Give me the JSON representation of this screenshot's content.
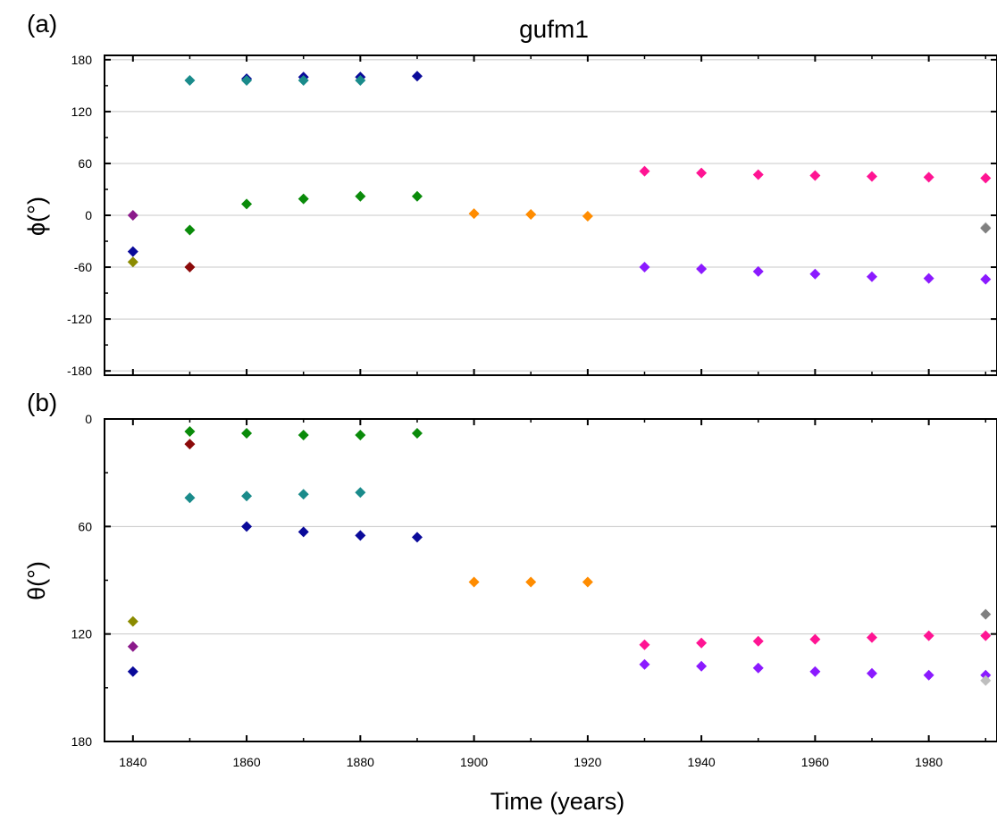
{
  "chart_data": [
    {
      "type": "scatter",
      "panel_label": "(a)",
      "title": "gufm1",
      "xlabel": "",
      "ylabel": "ϕ(°)",
      "xlim": [
        1835,
        1992
      ],
      "ylim": [
        -185,
        185
      ],
      "y_reversed": false,
      "yticks": [
        180,
        120,
        60,
        0,
        -60,
        -120,
        -180
      ],
      "ytick_labels": [
        "180",
        "120",
        "60",
        "0",
        "-60",
        "-120",
        "-180"
      ],
      "xticks": [
        1840,
        1860,
        1880,
        1900,
        1920,
        1940,
        1960,
        1980
      ],
      "grid": "horizontal",
      "marker": "diamond",
      "series": [
        {
          "color": "#8B1A8B",
          "x": [
            1840
          ],
          "y": [
            0
          ]
        },
        {
          "color": "#0A0A9A",
          "x": [
            1840,
            1860,
            1870,
            1880,
            1890
          ],
          "y": [
            -42,
            158,
            160,
            160,
            161
          ]
        },
        {
          "color": "#8B8B00",
          "x": [
            1840
          ],
          "y": [
            -54
          ]
        },
        {
          "color": "#8B0A0A",
          "x": [
            1850
          ],
          "y": [
            -60
          ]
        },
        {
          "color": "#1A8B8B",
          "x": [
            1850,
            1860,
            1870,
            1880
          ],
          "y": [
            156,
            156,
            156,
            156
          ]
        },
        {
          "color": "#0A8B0A",
          "x": [
            1850,
            1860,
            1870,
            1880,
            1890
          ],
          "y": [
            -17,
            13,
            19,
            22,
            22
          ]
        },
        {
          "color": "#FF8C00",
          "x": [
            1900,
            1910,
            1920
          ],
          "y": [
            2,
            1,
            -1
          ]
        },
        {
          "color": "#FF1493",
          "x": [
            1930,
            1940,
            1950,
            1960,
            1970,
            1980,
            1990
          ],
          "y": [
            51,
            49,
            47,
            46,
            45,
            44,
            43
          ]
        },
        {
          "color": "#8B1AFF",
          "x": [
            1930,
            1940,
            1950,
            1960,
            1970,
            1980,
            1990
          ],
          "y": [
            -60,
            -62,
            -65,
            -68,
            -71,
            -73,
            -74
          ]
        },
        {
          "color": "#BEBEBE",
          "x": [
            1990
          ],
          "y": [
            -14
          ]
        },
        {
          "color": "#808080",
          "x": [
            1990
          ],
          "y": [
            -15
          ]
        }
      ]
    },
    {
      "type": "scatter",
      "panel_label": "(b)",
      "title": "",
      "xlabel": "Time (years)",
      "ylabel": "θ(°)",
      "xlim": [
        1835,
        1992
      ],
      "ylim": [
        0,
        180
      ],
      "y_reversed": true,
      "yticks": [
        0,
        60,
        120,
        180
      ],
      "ytick_labels": [
        "0",
        "60",
        "120",
        "180"
      ],
      "xticks": [
        1840,
        1860,
        1880,
        1900,
        1920,
        1940,
        1960,
        1980
      ],
      "xtick_labels": [
        "1840",
        "1860",
        "1880",
        "1900",
        "1920",
        "1940",
        "1960",
        "1980"
      ],
      "grid": "horizontal",
      "marker": "diamond",
      "series": [
        {
          "color": "#8B8B00",
          "x": [
            1840
          ],
          "y": [
            113
          ]
        },
        {
          "color": "#8B1A8B",
          "x": [
            1840
          ],
          "y": [
            127
          ]
        },
        {
          "color": "#0A0A9A",
          "x": [
            1840,
            1860,
            1870,
            1880,
            1890
          ],
          "y": [
            141,
            60,
            63,
            65,
            66
          ]
        },
        {
          "color": "#0A8B0A",
          "x": [
            1850,
            1860,
            1870,
            1880,
            1890
          ],
          "y": [
            7,
            8,
            9,
            9,
            8
          ]
        },
        {
          "color": "#8B0A0A",
          "x": [
            1850
          ],
          "y": [
            14
          ]
        },
        {
          "color": "#1A8B8B",
          "x": [
            1850,
            1860,
            1870,
            1880
          ],
          "y": [
            44,
            43,
            42,
            41
          ]
        },
        {
          "color": "#FF8C00",
          "x": [
            1900,
            1910,
            1920
          ],
          "y": [
            91,
            91,
            91
          ]
        },
        {
          "color": "#FF1493",
          "x": [
            1930,
            1940,
            1950,
            1960,
            1970,
            1980,
            1990
          ],
          "y": [
            126,
            125,
            124,
            123,
            122,
            121,
            121
          ]
        },
        {
          "color": "#8B1AFF",
          "x": [
            1930,
            1940,
            1950,
            1960,
            1970,
            1980,
            1990
          ],
          "y": [
            137,
            138,
            139,
            141,
            142,
            143,
            143
          ]
        },
        {
          "color": "#808080",
          "x": [
            1990
          ],
          "y": [
            109
          ]
        },
        {
          "color": "#BEBEBE",
          "x": [
            1990
          ],
          "y": [
            146
          ]
        }
      ]
    }
  ]
}
